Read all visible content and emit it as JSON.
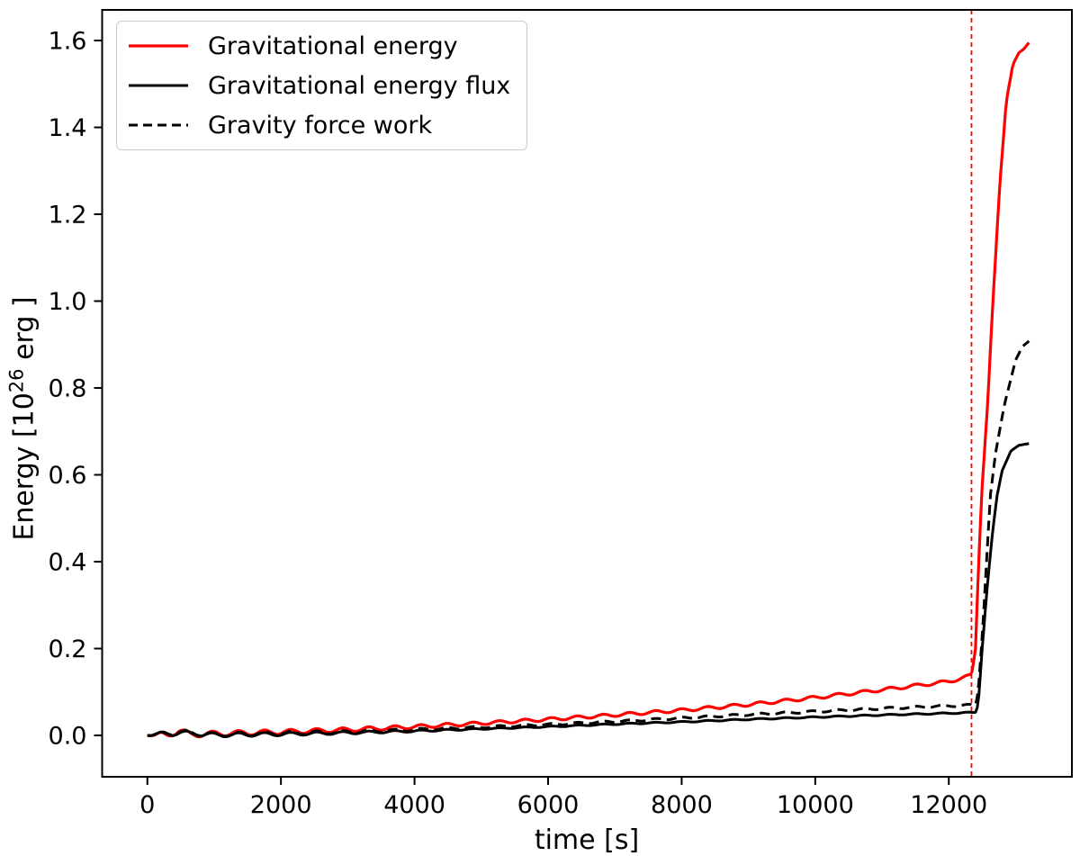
{
  "chart_data": {
    "type": "line",
    "title": "",
    "xlabel": "time [s]",
    "ylabel": "Energy [10^26 erg ]",
    "ylabel_parts": {
      "prefix": "Energy [10",
      "superscript": "26",
      "suffix": " erg ]"
    },
    "xlim": [
      -677,
      13843
    ],
    "ylim": [
      -0.0953,
      1.6705
    ],
    "xticks": [
      0,
      2000,
      4000,
      6000,
      8000,
      10000,
      12000
    ],
    "xtick_labels": [
      "0",
      "2000",
      "4000",
      "6000",
      "8000",
      "10000",
      "12000"
    ],
    "yticks": [
      0.0,
      0.2,
      0.4,
      0.6,
      0.8,
      1.0,
      1.2,
      1.4,
      1.6
    ],
    "ytick_labels": [
      "0.0",
      "0.2",
      "0.4",
      "0.6",
      "0.8",
      "1.0",
      "1.2",
      "1.4",
      "1.6"
    ],
    "grid": false,
    "axis_color": "#000000",
    "background_color": "#ffffff",
    "legend_position": "upper-left",
    "legend_border_color": "#cccccc",
    "vline": {
      "x": 12340,
      "color": "#ff0000",
      "style": "dashed"
    },
    "wiggle_period": 390,
    "series": [
      {
        "name": "Gravitational energy",
        "color": "#ff0000",
        "style": "solid",
        "width": 3.2,
        "wiggle": {
          "amp_start": 0.0065,
          "amp_end": 0.0035,
          "decay_until": 5000,
          "until": 12340
        },
        "anchors": [
          [
            0,
            0
          ],
          [
            300,
            0.001
          ],
          [
            480,
            0.011
          ],
          [
            650,
            0.002
          ],
          [
            1000,
            0.004
          ],
          [
            2000,
            0.008
          ],
          [
            3000,
            0.013
          ],
          [
            4000,
            0.02
          ],
          [
            5000,
            0.028
          ],
          [
            6000,
            0.037
          ],
          [
            7000,
            0.047
          ],
          [
            8000,
            0.058
          ],
          [
            9000,
            0.071
          ],
          [
            10000,
            0.087
          ],
          [
            11000,
            0.105
          ],
          [
            12000,
            0.124
          ],
          [
            12340,
            0.138
          ],
          [
            12400,
            0.2
          ],
          [
            12430,
            0.33
          ],
          [
            12490,
            0.55
          ],
          [
            12580,
            0.76
          ],
          [
            12650,
            0.97
          ],
          [
            12760,
            1.26
          ],
          [
            12860,
            1.46
          ],
          [
            12960,
            1.545
          ],
          [
            13050,
            1.572
          ],
          [
            13120,
            1.58
          ],
          [
            13200,
            1.595
          ]
        ]
      },
      {
        "name": "Gravitational energy flux",
        "color": "#000000",
        "style": "solid",
        "width": 3,
        "wiggle": {
          "amp_start": 0.0055,
          "amp_end": 0.0012,
          "decay_until": 5000,
          "until": 12340
        },
        "anchors": [
          [
            0,
            0
          ],
          [
            480,
            0.006
          ],
          [
            1000,
            0.001
          ],
          [
            2000,
            0.003
          ],
          [
            3000,
            0.006
          ],
          [
            4000,
            0.01
          ],
          [
            5000,
            0.015
          ],
          [
            6000,
            0.02
          ],
          [
            7000,
            0.026
          ],
          [
            8000,
            0.031
          ],
          [
            9000,
            0.037
          ],
          [
            10000,
            0.042
          ],
          [
            11000,
            0.047
          ],
          [
            12000,
            0.051
          ],
          [
            12400,
            0.053
          ],
          [
            12440,
            0.07
          ],
          [
            12500,
            0.2
          ],
          [
            12580,
            0.35
          ],
          [
            12650,
            0.46
          ],
          [
            12720,
            0.55
          ],
          [
            12800,
            0.61
          ],
          [
            12930,
            0.655
          ],
          [
            13050,
            0.668
          ],
          [
            13200,
            0.672
          ]
        ]
      },
      {
        "name": "Gravity force work",
        "color": "#000000",
        "style": "dashed",
        "width": 3,
        "wiggle": {
          "amp_start": 0.0055,
          "amp_end": 0.0022,
          "decay_until": 5000,
          "until": 12340
        },
        "anchors": [
          [
            0,
            0
          ],
          [
            480,
            0.008
          ],
          [
            1000,
            0.002
          ],
          [
            2000,
            0.005
          ],
          [
            3000,
            0.008
          ],
          [
            4000,
            0.013
          ],
          [
            5000,
            0.019
          ],
          [
            6000,
            0.025
          ],
          [
            7000,
            0.032
          ],
          [
            8000,
            0.04
          ],
          [
            9000,
            0.048
          ],
          [
            10000,
            0.055
          ],
          [
            11000,
            0.062
          ],
          [
            12000,
            0.068
          ],
          [
            12400,
            0.07
          ],
          [
            12440,
            0.1
          ],
          [
            12510,
            0.25
          ],
          [
            12620,
            0.55
          ],
          [
            12700,
            0.65
          ],
          [
            12830,
            0.76
          ],
          [
            13000,
            0.864
          ],
          [
            13100,
            0.895
          ],
          [
            13200,
            0.908
          ]
        ]
      }
    ]
  }
}
